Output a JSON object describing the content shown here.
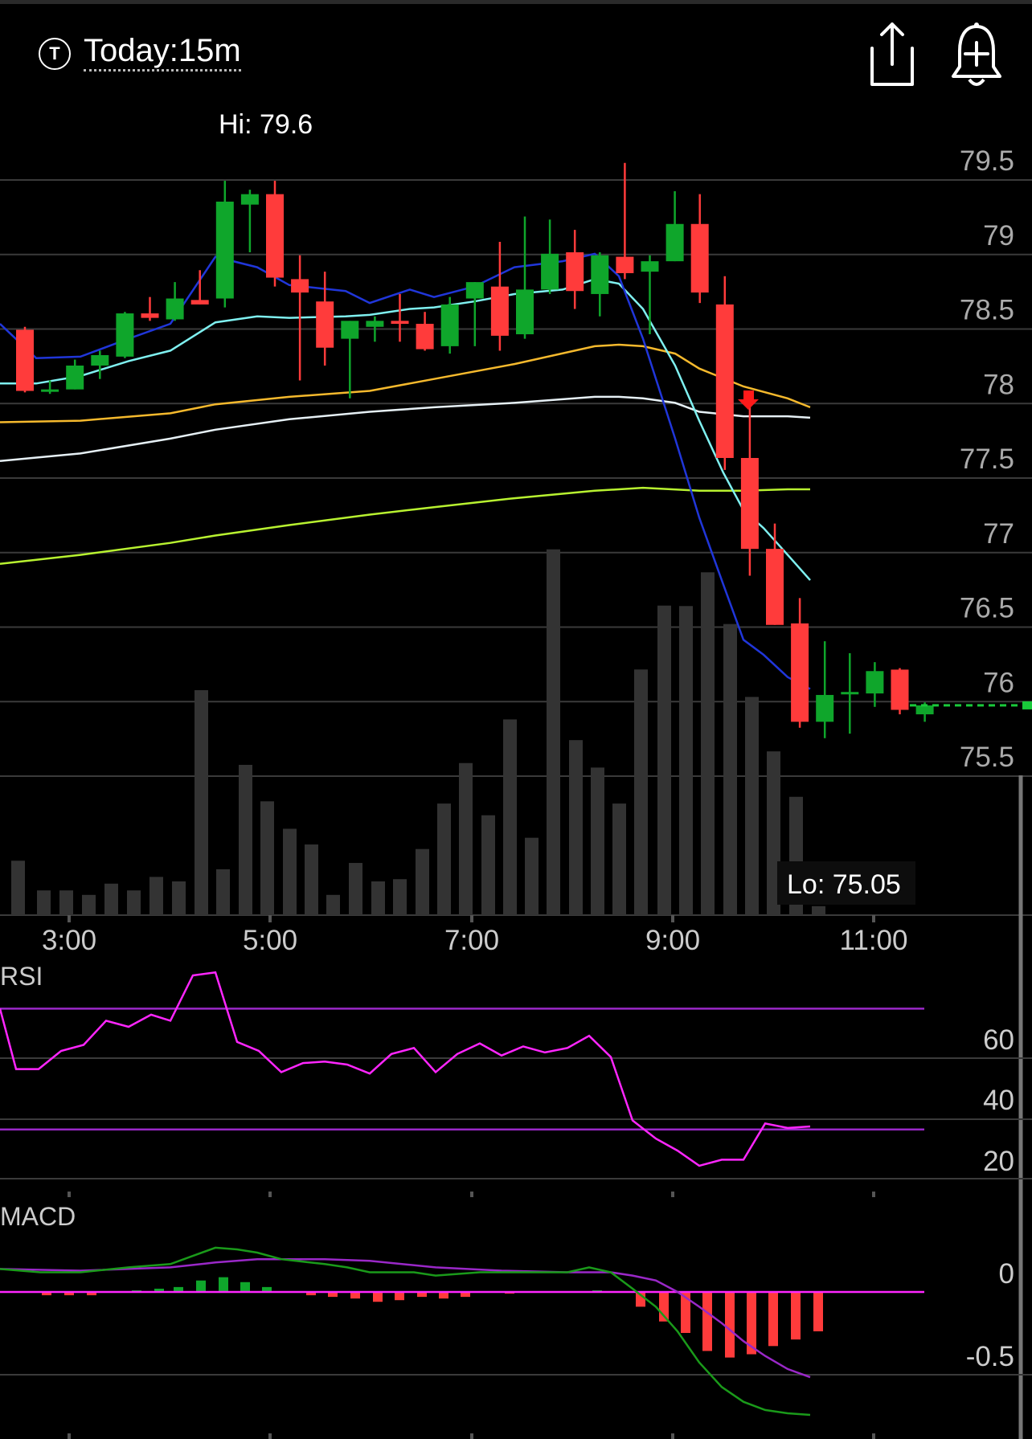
{
  "header": {
    "t_badge": "T",
    "timeframe": "Today:15m",
    "share_icon": "share-icon",
    "alert_icon": "bell-plus-icon"
  },
  "colors": {
    "background": "#000000",
    "up": "#0fa62b",
    "down": "#ff3b3b",
    "volume": "#333333",
    "ma_blue": "#2036d9",
    "ma_cyan": "#7ff0f0",
    "ma_orange": "#f5b92d",
    "ma_white": "#e6f0f5",
    "ma_lime": "#b8f230",
    "rsi_line": "#ff26ff",
    "rsi_bands": "#9a28c8",
    "macd_line": "#1a9a1a",
    "macd_signal": "#9a28c8",
    "macd_zero": "#ff26ff",
    "last_price": "#19c93a"
  },
  "chart_data": {
    "type": "candlestick",
    "hi_label": "Hi: 79.6",
    "lo_label": "Lo: 75.05",
    "x_ticks": [
      "3:00",
      "5:00",
      "7:00",
      "9:00",
      "11:00"
    ],
    "price_ticks": [
      "79.5",
      "79",
      "78.5",
      "78",
      "77.5",
      "77",
      "76.5",
      "76",
      "75.5"
    ],
    "candles": [
      {
        "o": 78.36,
        "h": 78.38,
        "l": 77.94,
        "c": 77.95
      },
      {
        "o": 77.96,
        "h": 78.02,
        "l": 77.93,
        "c": 77.96
      },
      {
        "o": 77.96,
        "h": 78.16,
        "l": 77.96,
        "c": 78.12
      },
      {
        "o": 78.12,
        "h": 78.22,
        "l": 78.03,
        "c": 78.19
      },
      {
        "o": 78.18,
        "h": 78.48,
        "l": 78.17,
        "c": 78.47
      },
      {
        "o": 78.47,
        "h": 78.58,
        "l": 78.42,
        "c": 78.44
      },
      {
        "o": 78.43,
        "h": 78.68,
        "l": 78.42,
        "c": 78.57
      },
      {
        "o": 78.56,
        "h": 78.76,
        "l": 78.53,
        "c": 78.53
      },
      {
        "o": 78.57,
        "h": 79.36,
        "l": 78.51,
        "c": 79.22
      },
      {
        "o": 79.2,
        "h": 79.3,
        "l": 78.88,
        "c": 79.27
      },
      {
        "o": 79.27,
        "h": 79.36,
        "l": 78.65,
        "c": 78.71
      },
      {
        "o": 78.7,
        "h": 78.86,
        "l": 78.02,
        "c": 78.61
      },
      {
        "o": 78.55,
        "h": 78.75,
        "l": 78.12,
        "c": 78.24
      },
      {
        "o": 78.3,
        "h": 78.42,
        "l": 77.9,
        "c": 78.42
      },
      {
        "o": 78.38,
        "h": 78.45,
        "l": 78.28,
        "c": 78.42
      },
      {
        "o": 78.42,
        "h": 78.6,
        "l": 78.28,
        "c": 78.4
      },
      {
        "o": 78.4,
        "h": 78.48,
        "l": 78.22,
        "c": 78.23
      },
      {
        "o": 78.25,
        "h": 78.58,
        "l": 78.2,
        "c": 78.53
      },
      {
        "o": 78.57,
        "h": 78.68,
        "l": 78.25,
        "c": 78.68
      },
      {
        "o": 78.65,
        "h": 78.95,
        "l": 78.22,
        "c": 78.32
      },
      {
        "o": 78.33,
        "h": 79.12,
        "l": 78.3,
        "c": 78.63
      },
      {
        "o": 78.63,
        "h": 79.1,
        "l": 78.6,
        "c": 78.87
      },
      {
        "o": 78.88,
        "h": 79.03,
        "l": 78.5,
        "c": 78.62
      },
      {
        "o": 78.6,
        "h": 78.88,
        "l": 78.45,
        "c": 78.86
      },
      {
        "o": 78.85,
        "h": 79.48,
        "l": 78.7,
        "c": 78.74
      },
      {
        "o": 78.75,
        "h": 78.86,
        "l": 78.33,
        "c": 78.82
      },
      {
        "o": 78.82,
        "h": 79.29,
        "l": 78.82,
        "c": 79.07
      },
      {
        "o": 79.07,
        "h": 79.27,
        "l": 78.54,
        "c": 78.61
      },
      {
        "o": 78.53,
        "h": 78.72,
        "l": 77.42,
        "c": 77.5
      },
      {
        "o": 77.5,
        "h": 77.9,
        "l": 76.71,
        "c": 76.89
      },
      {
        "o": 76.89,
        "h": 77.06,
        "l": 76.38,
        "c": 76.38
      },
      {
        "o": 76.39,
        "h": 76.56,
        "l": 75.69,
        "c": 75.73
      },
      {
        "o": 75.73,
        "h": 76.27,
        "l": 75.62,
        "c": 75.91
      },
      {
        "o": 75.93,
        "h": 76.19,
        "l": 75.65,
        "c": 75.93
      },
      {
        "o": 75.92,
        "h": 76.13,
        "l": 75.83,
        "c": 76.07
      },
      {
        "o": 76.08,
        "h": 76.09,
        "l": 75.78,
        "c": 75.81
      },
      {
        "o": 75.78,
        "h": 75.86,
        "l": 75.73,
        "c": 75.84
      }
    ],
    "volume": [
      [
        12,
        0.121
      ],
      [
        44,
        0.055
      ],
      [
        72,
        0.055
      ],
      [
        100,
        0.045
      ],
      [
        128,
        0.07
      ],
      [
        156,
        0.055
      ],
      [
        184,
        0.085
      ],
      [
        212,
        0.075
      ],
      [
        240,
        0.5
      ],
      [
        267,
        0.102
      ],
      [
        295,
        0.334
      ],
      [
        322,
        0.253
      ],
      [
        350,
        0.192
      ],
      [
        377,
        0.157
      ],
      [
        404,
        0.045
      ],
      [
        432,
        0.116
      ],
      [
        460,
        0.075
      ],
      [
        487,
        0.08
      ],
      [
        515,
        0.147
      ],
      [
        542,
        0.248
      ],
      [
        569,
        0.338
      ],
      [
        597,
        0.222
      ],
      [
        624,
        0.435
      ],
      [
        651,
        0.172
      ],
      [
        678,
        0.813
      ],
      [
        706,
        0.389
      ],
      [
        733,
        0.328
      ],
      [
        760,
        0.248
      ],
      [
        787,
        0.546
      ],
      [
        816,
        0.688
      ],
      [
        843,
        0.687
      ],
      [
        870,
        0.762
      ],
      [
        898,
        0.647
      ],
      [
        925,
        0.485
      ],
      [
        952,
        0.364
      ],
      [
        980,
        0.263
      ],
      [
        1008,
        0.02
      ]
    ],
    "ma_series": {
      "blue": [
        [
          0,
          78.4
        ],
        [
          45,
          78.17
        ],
        [
          100,
          78.18
        ],
        [
          160,
          78.3
        ],
        [
          212,
          78.4
        ],
        [
          268,
          78.85
        ],
        [
          320,
          78.78
        ],
        [
          360,
          78.66
        ],
        [
          430,
          78.62
        ],
        [
          460,
          78.54
        ],
        [
          510,
          78.63
        ],
        [
          540,
          78.58
        ],
        [
          590,
          78.65
        ],
        [
          640,
          78.78
        ],
        [
          700,
          78.82
        ],
        [
          740,
          78.87
        ],
        [
          770,
          78.72
        ],
        [
          800,
          78.3
        ],
        [
          840,
          77.63
        ],
        [
          870,
          77.1
        ],
        [
          900,
          76.65
        ],
        [
          925,
          76.28
        ],
        [
          950,
          76.18
        ],
        [
          980,
          76.03
        ],
        [
          1008,
          75.95
        ]
      ],
      "cyan": [
        [
          0,
          78.0
        ],
        [
          45,
          78.0
        ],
        [
          100,
          78.05
        ],
        [
          160,
          78.15
        ],
        [
          212,
          78.22
        ],
        [
          268,
          78.41
        ],
        [
          320,
          78.45
        ],
        [
          360,
          78.44
        ],
        [
          430,
          78.45
        ],
        [
          460,
          78.46
        ],
        [
          510,
          78.5
        ],
        [
          540,
          78.51
        ],
        [
          590,
          78.55
        ],
        [
          640,
          78.6
        ],
        [
          700,
          78.63
        ],
        [
          740,
          78.7
        ],
        [
          770,
          78.67
        ],
        [
          800,
          78.5
        ],
        [
          840,
          78.12
        ],
        [
          870,
          77.75
        ],
        [
          900,
          77.4
        ],
        [
          925,
          77.15
        ],
        [
          950,
          77.03
        ],
        [
          980,
          76.85
        ],
        [
          1008,
          76.68
        ]
      ],
      "orange": [
        [
          0,
          77.74
        ],
        [
          100,
          77.75
        ],
        [
          212,
          77.8
        ],
        [
          268,
          77.86
        ],
        [
          360,
          77.91
        ],
        [
          460,
          77.95
        ],
        [
          540,
          78.03
        ],
        [
          640,
          78.13
        ],
        [
          740,
          78.25
        ],
        [
          770,
          78.26
        ],
        [
          800,
          78.25
        ],
        [
          840,
          78.2
        ],
        [
          870,
          78.1
        ],
        [
          925,
          77.98
        ],
        [
          980,
          77.9
        ],
        [
          1008,
          77.84
        ]
      ],
      "white": [
        [
          0,
          77.48
        ],
        [
          100,
          77.53
        ],
        [
          212,
          77.63
        ],
        [
          268,
          77.69
        ],
        [
          360,
          77.76
        ],
        [
          460,
          77.81
        ],
        [
          540,
          77.84
        ],
        [
          640,
          77.87
        ],
        [
          740,
          77.91
        ],
        [
          770,
          77.91
        ],
        [
          800,
          77.9
        ],
        [
          840,
          77.87
        ],
        [
          870,
          77.81
        ],
        [
          925,
          77.78
        ],
        [
          980,
          77.78
        ],
        [
          1008,
          77.77
        ]
      ],
      "lime": [
        [
          0,
          76.79
        ],
        [
          100,
          76.85
        ],
        [
          212,
          76.93
        ],
        [
          268,
          76.98
        ],
        [
          360,
          77.05
        ],
        [
          460,
          77.12
        ],
        [
          540,
          77.17
        ],
        [
          640,
          77.23
        ],
        [
          740,
          77.28
        ],
        [
          800,
          77.3
        ],
        [
          870,
          77.28
        ],
        [
          925,
          77.28
        ],
        [
          980,
          77.29
        ],
        [
          1008,
          77.29
        ]
      ]
    },
    "last_price": 75.84,
    "rsi": {
      "label": "RSI",
      "ticks": [
        "60",
        "40",
        "20"
      ],
      "overbought": 70,
      "oversold": 30,
      "values": [
        [
          0,
          70
        ],
        [
          20,
          50
        ],
        [
          48,
          50
        ],
        [
          76,
          56
        ],
        [
          104,
          58
        ],
        [
          132,
          66
        ],
        [
          160,
          64
        ],
        [
          188,
          68
        ],
        [
          212,
          66
        ],
        [
          240,
          81
        ],
        [
          268,
          82
        ],
        [
          295,
          59
        ],
        [
          322,
          56
        ],
        [
          350,
          49
        ],
        [
          377,
          52
        ],
        [
          404,
          52.5
        ],
        [
          432,
          51.5
        ],
        [
          460,
          48.5
        ],
        [
          487,
          55
        ],
        [
          515,
          57
        ],
        [
          542,
          49
        ],
        [
          569,
          55
        ],
        [
          597,
          58.5
        ],
        [
          624,
          54.5
        ],
        [
          651,
          57.5
        ],
        [
          678,
          55.5
        ],
        [
          706,
          57
        ],
        [
          733,
          61
        ],
        [
          760,
          54
        ],
        [
          787,
          33
        ],
        [
          816,
          27
        ],
        [
          843,
          23
        ],
        [
          870,
          18
        ],
        [
          898,
          20
        ],
        [
          925,
          20
        ],
        [
          952,
          32
        ],
        [
          980,
          30.5
        ],
        [
          1008,
          31
        ]
      ]
    },
    "macd": {
      "label": "MACD",
      "ticks": [
        "0",
        "-0.5"
      ],
      "macd_line": [
        [
          0,
          0.14
        ],
        [
          50,
          0.12
        ],
        [
          100,
          0.12
        ],
        [
          160,
          0.15
        ],
        [
          212,
          0.17
        ],
        [
          240,
          0.22
        ],
        [
          268,
          0.27
        ],
        [
          295,
          0.26
        ],
        [
          320,
          0.24
        ],
        [
          350,
          0.2
        ],
        [
          404,
          0.17
        ],
        [
          432,
          0.15
        ],
        [
          460,
          0.12
        ],
        [
          515,
          0.12
        ],
        [
          542,
          0.1
        ],
        [
          597,
          0.12
        ],
        [
          651,
          0.12
        ],
        [
          706,
          0.12
        ],
        [
          733,
          0.15
        ],
        [
          760,
          0.12
        ],
        [
          787,
          0.02
        ],
        [
          816,
          -0.09
        ],
        [
          843,
          -0.24
        ],
        [
          870,
          -0.43
        ],
        [
          898,
          -0.58
        ],
        [
          925,
          -0.67
        ],
        [
          952,
          -0.72
        ],
        [
          980,
          -0.74
        ],
        [
          1008,
          -0.75
        ]
      ],
      "signal_line": [
        [
          0,
          0.14
        ],
        [
          100,
          0.13
        ],
        [
          212,
          0.15
        ],
        [
          268,
          0.18
        ],
        [
          320,
          0.2
        ],
        [
          404,
          0.2
        ],
        [
          460,
          0.19
        ],
        [
          542,
          0.15
        ],
        [
          624,
          0.13
        ],
        [
          706,
          0.12
        ],
        [
          733,
          0.12
        ],
        [
          760,
          0.12
        ],
        [
          787,
          0.1
        ],
        [
          816,
          0.07
        ],
        [
          843,
          0.0
        ],
        [
          870,
          -0.09
        ],
        [
          898,
          -0.19
        ],
        [
          925,
          -0.3
        ],
        [
          952,
          -0.39
        ],
        [
          980,
          -0.47
        ],
        [
          1008,
          -0.52
        ]
      ],
      "histogram": [
        [
          48,
          -0.02
        ],
        [
          76,
          -0.02
        ],
        [
          104,
          -0.02
        ],
        [
          132,
          0.005
        ],
        [
          160,
          0.01
        ],
        [
          188,
          0.02
        ],
        [
          212,
          0.03
        ],
        [
          240,
          0.07
        ],
        [
          268,
          0.09
        ],
        [
          295,
          0.06
        ],
        [
          322,
          0.03
        ],
        [
          377,
          -0.02
        ],
        [
          404,
          -0.03
        ],
        [
          432,
          -0.04
        ],
        [
          460,
          -0.06
        ],
        [
          487,
          -0.05
        ],
        [
          515,
          -0.03
        ],
        [
          542,
          -0.04
        ],
        [
          569,
          -0.03
        ],
        [
          624,
          -0.005
        ],
        [
          733,
          0.01
        ],
        [
          760,
          0.005
        ],
        [
          787,
          -0.09
        ],
        [
          816,
          -0.18
        ],
        [
          843,
          -0.25
        ],
        [
          870,
          -0.36
        ],
        [
          898,
          -0.4
        ],
        [
          925,
          -0.38
        ],
        [
          952,
          -0.33
        ],
        [
          980,
          -0.29
        ],
        [
          1008,
          -0.24
        ]
      ]
    }
  }
}
